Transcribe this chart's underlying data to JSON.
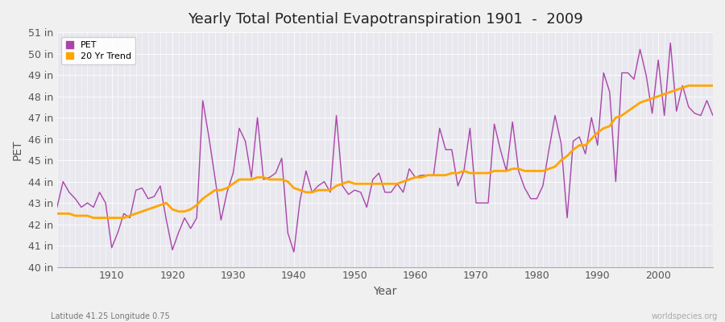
{
  "title": "Yearly Total Potential Evapotranspiration 1901  -  2009",
  "xlabel": "Year",
  "ylabel": "PET",
  "subtitle": "Latitude 41.25 Longitude 0.75",
  "watermark": "worldspecies.org",
  "pet_color": "#AA44AA",
  "trend_color": "#FFA500",
  "background_color": "#F0F0F0",
  "plot_bg_color": "#E8E8EE",
  "grid_color": "#FFFFFF",
  "ylim": [
    40,
    51
  ],
  "yticks": [
    40,
    41,
    42,
    43,
    44,
    45,
    46,
    47,
    48,
    49,
    50,
    51
  ],
  "ytick_labels": [
    "40 in",
    "41 in",
    "42 in",
    "43 in",
    "44 in",
    "45 in",
    "46 in",
    "47 in",
    "48 in",
    "49 in",
    "50 in",
    "51 in"
  ],
  "xlim": [
    1901,
    2009
  ],
  "xticks": [
    1910,
    1920,
    1930,
    1940,
    1950,
    1960,
    1970,
    1980,
    1990,
    2000
  ],
  "years": [
    1901,
    1902,
    1903,
    1904,
    1905,
    1906,
    1907,
    1908,
    1909,
    1910,
    1911,
    1912,
    1913,
    1914,
    1915,
    1916,
    1917,
    1918,
    1919,
    1920,
    1921,
    1922,
    1923,
    1924,
    1925,
    1926,
    1927,
    1928,
    1929,
    1930,
    1931,
    1932,
    1933,
    1934,
    1935,
    1936,
    1937,
    1938,
    1939,
    1940,
    1941,
    1942,
    1943,
    1944,
    1945,
    1946,
    1947,
    1948,
    1949,
    1950,
    1951,
    1952,
    1953,
    1954,
    1955,
    1956,
    1957,
    1958,
    1959,
    1960,
    1961,
    1962,
    1963,
    1964,
    1965,
    1966,
    1967,
    1968,
    1969,
    1970,
    1971,
    1972,
    1973,
    1974,
    1975,
    1976,
    1977,
    1978,
    1979,
    1980,
    1981,
    1982,
    1983,
    1984,
    1985,
    1986,
    1987,
    1988,
    1989,
    1990,
    1991,
    1992,
    1993,
    1994,
    1995,
    1996,
    1997,
    1998,
    1999,
    2000,
    2001,
    2002,
    2003,
    2004,
    2005,
    2006,
    2007,
    2008,
    2009
  ],
  "pet_values": [
    42.8,
    44.0,
    43.5,
    43.2,
    42.8,
    43.0,
    42.8,
    43.5,
    43.0,
    40.9,
    41.6,
    42.5,
    42.3,
    43.6,
    43.7,
    43.2,
    43.3,
    43.8,
    42.2,
    40.8,
    41.6,
    42.3,
    41.8,
    42.3,
    47.8,
    46.1,
    44.2,
    42.2,
    43.5,
    44.4,
    46.5,
    45.9,
    44.2,
    47.0,
    44.1,
    44.2,
    44.4,
    45.1,
    41.6,
    40.7,
    43.1,
    44.5,
    43.5,
    43.8,
    44.0,
    43.5,
    47.1,
    43.8,
    43.4,
    43.6,
    43.5,
    42.8,
    44.1,
    44.4,
    43.5,
    43.5,
    43.9,
    43.5,
    44.6,
    44.2,
    44.3,
    44.3,
    44.3,
    46.5,
    45.5,
    45.5,
    43.8,
    44.5,
    46.5,
    43.0,
    43.0,
    43.0,
    46.7,
    45.5,
    44.5,
    46.8,
    44.5,
    43.7,
    43.2,
    43.2,
    43.8,
    45.5,
    47.1,
    45.8,
    42.3,
    45.9,
    46.1,
    45.3,
    47.0,
    45.7,
    49.1,
    48.2,
    44.0,
    49.1,
    49.1,
    48.8,
    50.2,
    49.0,
    47.2,
    49.7,
    47.1,
    50.5,
    47.3,
    48.5,
    47.5,
    47.2,
    47.1,
    47.8,
    47.1
  ],
  "trend_values": [
    42.5,
    42.5,
    42.5,
    42.4,
    42.4,
    42.4,
    42.3,
    42.3,
    42.3,
    42.3,
    42.3,
    42.3,
    42.4,
    42.5,
    42.6,
    42.7,
    42.8,
    42.9,
    43.0,
    42.7,
    42.6,
    42.6,
    42.7,
    42.9,
    43.2,
    43.4,
    43.6,
    43.6,
    43.7,
    43.9,
    44.1,
    44.1,
    44.1,
    44.2,
    44.2,
    44.1,
    44.1,
    44.1,
    44.0,
    43.7,
    43.6,
    43.5,
    43.5,
    43.6,
    43.6,
    43.6,
    43.8,
    43.9,
    44.0,
    43.9,
    43.9,
    43.9,
    43.9,
    43.9,
    43.9,
    43.9,
    43.9,
    44.0,
    44.1,
    44.2,
    44.2,
    44.3,
    44.3,
    44.3,
    44.3,
    44.4,
    44.4,
    44.5,
    44.4,
    44.4,
    44.4,
    44.4,
    44.5,
    44.5,
    44.5,
    44.6,
    44.6,
    44.5,
    44.5,
    44.5,
    44.5,
    44.6,
    44.7,
    45.0,
    45.2,
    45.5,
    45.7,
    45.7,
    46.0,
    46.3,
    46.5,
    46.6,
    47.0,
    47.1,
    47.3,
    47.5,
    47.7,
    47.8,
    47.9,
    48.0,
    48.1,
    48.2,
    48.3,
    48.4,
    48.5,
    48.5,
    48.5,
    48.5,
    48.5
  ]
}
